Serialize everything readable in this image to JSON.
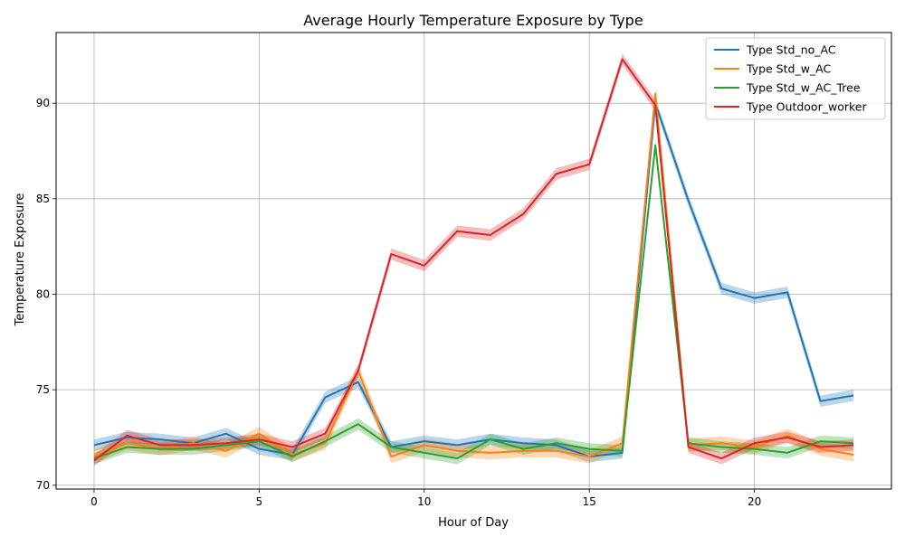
{
  "chart_data": {
    "type": "line",
    "title": "Average Hourly Temperature Exposure by Type",
    "xlabel": "Hour of Day",
    "ylabel": "Temperature Exposure",
    "xlim": [
      -1.15,
      24.15
    ],
    "ylim": [
      69.8,
      93.7
    ],
    "xticks": [
      0,
      5,
      10,
      15,
      20
    ],
    "yticks": [
      70,
      75,
      80,
      85,
      90
    ],
    "grid": true,
    "legend_position": "top-right",
    "x": [
      0,
      1,
      2,
      3,
      4,
      5,
      6,
      7,
      8,
      9,
      10,
      11,
      12,
      13,
      14,
      15,
      16,
      17,
      18,
      19,
      20,
      21,
      22,
      23
    ],
    "series": [
      {
        "name": "Type Std_no_AC",
        "color": "#1f77b4",
        "values": [
          72.1,
          72.5,
          72.4,
          72.2,
          72.7,
          71.9,
          71.6,
          74.6,
          75.4,
          72.0,
          72.3,
          72.1,
          72.4,
          72.2,
          72.1,
          71.5,
          71.7,
          90.0,
          84.9,
          80.3,
          79.8,
          80.1,
          74.4,
          74.7
        ],
        "band": 0.3
      },
      {
        "name": "Type Std_w_AC",
        "color": "#ff7f0e",
        "values": [
          71.5,
          72.2,
          71.9,
          72.2,
          71.8,
          72.7,
          71.6,
          72.2,
          76.0,
          71.5,
          72.1,
          71.8,
          71.7,
          71.8,
          71.8,
          71.5,
          72.2,
          90.5,
          72.1,
          72.2,
          72.0,
          72.6,
          71.9,
          71.6
        ],
        "band": 0.35
      },
      {
        "name": "Type Std_w_AC_Tree",
        "color": "#2ca02c",
        "values": [
          71.4,
          72.0,
          71.9,
          71.9,
          72.1,
          72.3,
          71.5,
          72.3,
          73.2,
          72.0,
          71.7,
          71.4,
          72.4,
          71.9,
          72.2,
          71.9,
          71.8,
          87.8,
          72.2,
          72.0,
          71.9,
          71.7,
          72.3,
          72.2
        ],
        "band": 0.3
      },
      {
        "name": "Type Outdoor_worker",
        "color": "#d62728",
        "values": [
          71.3,
          72.6,
          72.1,
          72.1,
          72.2,
          72.4,
          72.0,
          72.7,
          76.0,
          82.1,
          81.5,
          83.3,
          83.1,
          84.2,
          86.3,
          86.8,
          92.3,
          89.9,
          72.0,
          71.4,
          72.2,
          72.5,
          72.0,
          72.1
        ],
        "band": 0.3
      }
    ]
  }
}
